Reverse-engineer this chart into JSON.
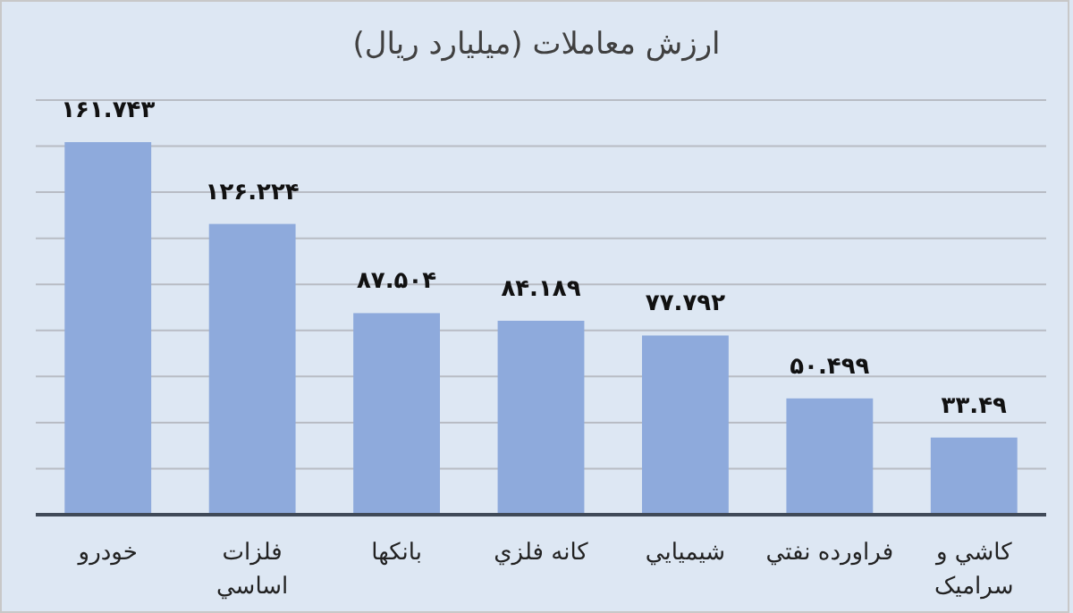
{
  "chart_data": {
    "type": "bar",
    "title": "ارزش معاملات  (میلیارد ریال)",
    "categories": [
      "خودرو",
      "فلزات اساسي",
      "بانکها",
      "کانه فلزي",
      "شيميايي",
      "فراورده نفتي",
      "کاشي و سراميک"
    ],
    "values": [
      161.743,
      126.224,
      87.504,
      84.189,
      77.792,
      50.499,
      33.49
    ],
    "value_labels": [
      "۱۶۱.۷۴۳",
      "۱۲۶.۲۲۴",
      "۸۷.۵۰۴",
      "۸۴.۱۸۹",
      "۷۷.۷۹۲",
      "۵۰.۴۹۹",
      "۳۳.۴۹"
    ],
    "color": "#8eaadc",
    "ylim": [
      0,
      180
    ],
    "yticks": [
      {
        "value": 0,
        "label": null
      },
      {
        "value": 20,
        "label": null
      },
      {
        "value": 40,
        "label": null
      },
      {
        "value": 60,
        "label": null
      },
      {
        "value": 80,
        "label": null
      },
      {
        "value": 100,
        "label": null
      },
      {
        "value": 120,
        "label": null
      },
      {
        "value": 140,
        "label": null
      },
      {
        "value": 160,
        "label": null
      },
      {
        "value": 180,
        "label": null
      }
    ],
    "grid": "y"
  }
}
